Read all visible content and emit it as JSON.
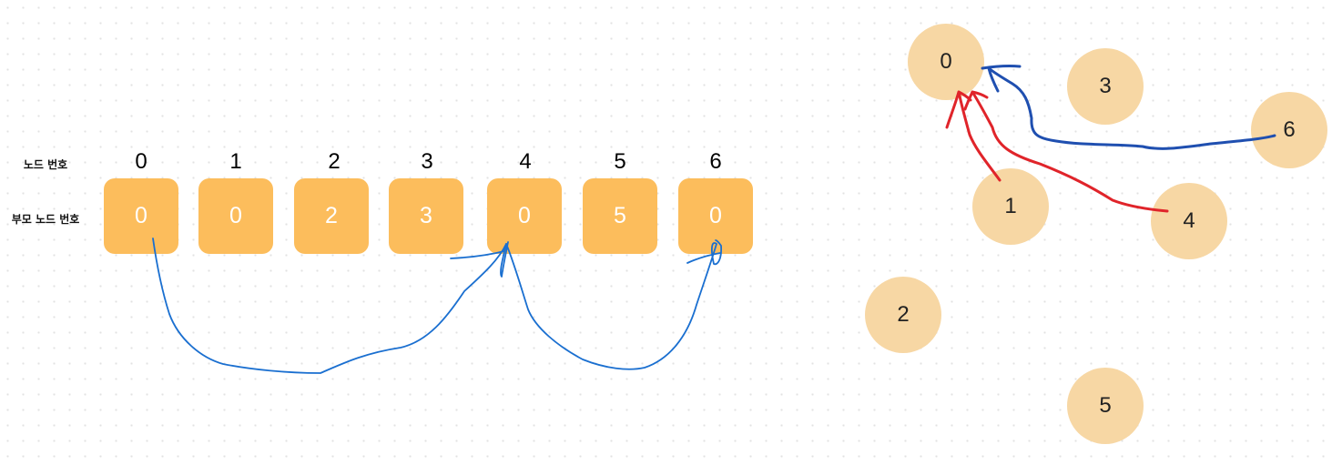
{
  "labels": {
    "node_number": "노드 번호",
    "parent_node_number": "부모 노드 번호"
  },
  "array": {
    "indices": [
      "0",
      "1",
      "2",
      "3",
      "4",
      "5",
      "6"
    ],
    "parents": [
      "0",
      "0",
      "2",
      "3",
      "0",
      "5",
      "0"
    ]
  },
  "tree": {
    "nodes": [
      "0",
      "1",
      "2",
      "3",
      "4",
      "5",
      "6"
    ]
  },
  "colors": {
    "cell_fill": "#fcbd5c",
    "node_fill": "#f7d7a4",
    "pen_blue_thin": "#1a6fd0",
    "pen_blue_thick": "#1f4fb0",
    "pen_red": "#e0242a"
  }
}
